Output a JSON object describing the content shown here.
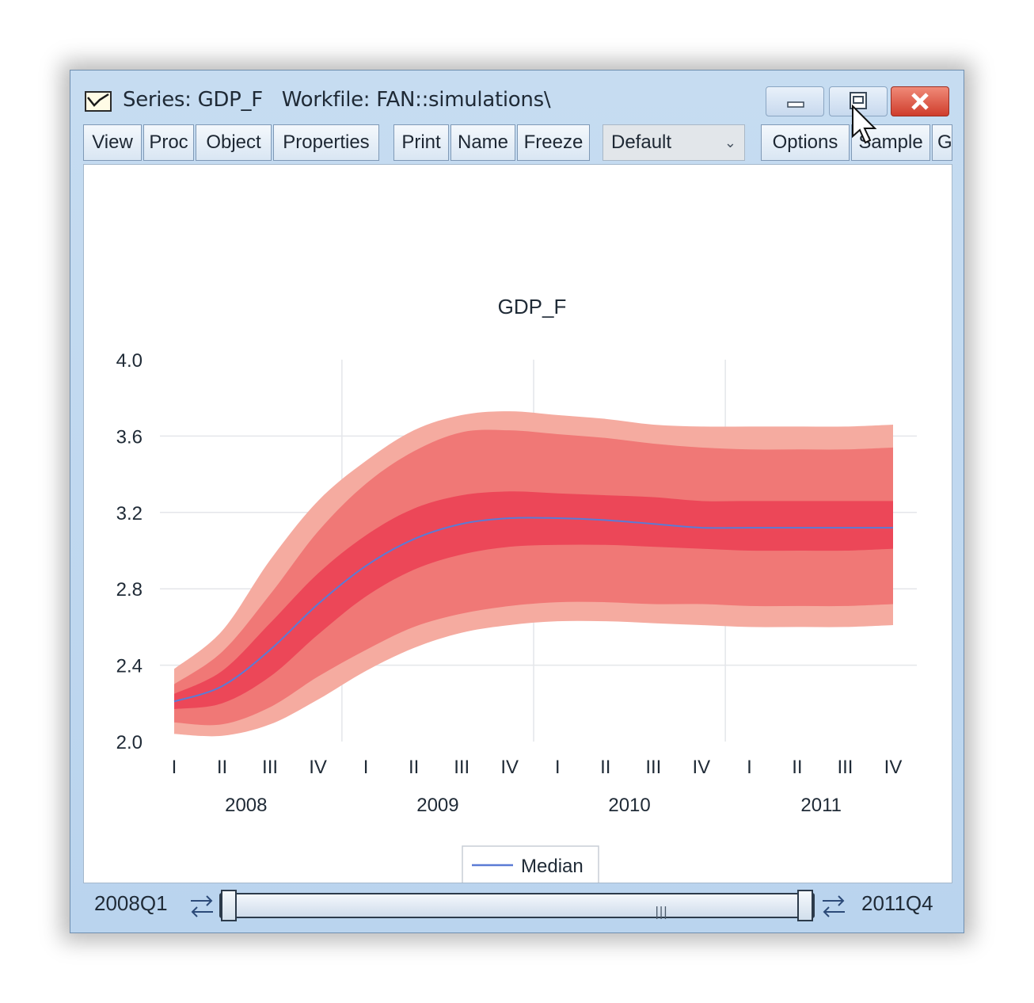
{
  "window": {
    "title": "Series: GDP_F   Workfile: FAN::simulations\\",
    "icon": "line-chart-icon"
  },
  "toolbar": {
    "buttons": [
      "View",
      "Proc",
      "Object",
      "Properties",
      "Print",
      "Name",
      "Freeze",
      "Options",
      "Sample",
      "G"
    ],
    "select_value": "Default"
  },
  "sample": {
    "start": "2008Q1",
    "end": "2011Q4"
  },
  "chart_data": {
    "type": "area",
    "title": "GDP_F",
    "xlabel": "",
    "ylabel": "",
    "ylim": [
      2.0,
      4.0
    ],
    "yticks": [
      "2.0",
      "2.4",
      "2.8",
      "3.2",
      "3.6",
      "4.0"
    ],
    "x": [
      "2008Q1",
      "2008Q2",
      "2008Q3",
      "2008Q4",
      "2009Q1",
      "2009Q2",
      "2009Q3",
      "2009Q4",
      "2010Q1",
      "2010Q2",
      "2010Q3",
      "2010Q4",
      "2011Q1",
      "2011Q2",
      "2011Q3",
      "2011Q4"
    ],
    "quarter_labels": [
      "I",
      "II",
      "III",
      "IV",
      "I",
      "II",
      "III",
      "IV",
      "I",
      "II",
      "III",
      "IV",
      "I",
      "II",
      "III",
      "IV"
    ],
    "year_labels": [
      "2008",
      "2009",
      "2010",
      "2011"
    ],
    "bands": [
      {
        "color": "#f5aba0",
        "upper": [
          2.38,
          2.58,
          2.95,
          3.26,
          3.47,
          3.63,
          3.71,
          3.73,
          3.71,
          3.69,
          3.66,
          3.65,
          3.65,
          3.65,
          3.65,
          3.66
        ],
        "lower": [
          2.04,
          2.03,
          2.09,
          2.22,
          2.37,
          2.49,
          2.57,
          2.61,
          2.63,
          2.63,
          2.62,
          2.61,
          2.6,
          2.6,
          2.6,
          2.61
        ]
      },
      {
        "color": "#f07876",
        "upper": [
          2.3,
          2.47,
          2.77,
          3.1,
          3.35,
          3.52,
          3.62,
          3.63,
          3.61,
          3.59,
          3.56,
          3.54,
          3.53,
          3.53,
          3.53,
          3.54
        ],
        "lower": [
          2.1,
          2.09,
          2.18,
          2.34,
          2.48,
          2.6,
          2.67,
          2.71,
          2.73,
          2.73,
          2.72,
          2.72,
          2.71,
          2.71,
          2.71,
          2.72
        ]
      },
      {
        "color": "#ec4758",
        "upper": [
          2.25,
          2.37,
          2.62,
          2.88,
          3.08,
          3.22,
          3.29,
          3.31,
          3.3,
          3.29,
          3.28,
          3.26,
          3.26,
          3.26,
          3.26,
          3.26
        ],
        "lower": [
          2.17,
          2.2,
          2.34,
          2.56,
          2.76,
          2.9,
          2.98,
          3.02,
          3.03,
          3.03,
          3.02,
          3.01,
          3.0,
          3.0,
          3.0,
          3.01
        ]
      }
    ],
    "series": [
      {
        "name": "Median",
        "color": "#5b7bd5",
        "values": [
          2.21,
          2.29,
          2.48,
          2.72,
          2.92,
          3.06,
          3.14,
          3.17,
          3.17,
          3.16,
          3.14,
          3.12,
          3.12,
          3.12,
          3.12,
          3.12
        ]
      }
    ],
    "grid": true,
    "legend": "bottom-center"
  }
}
